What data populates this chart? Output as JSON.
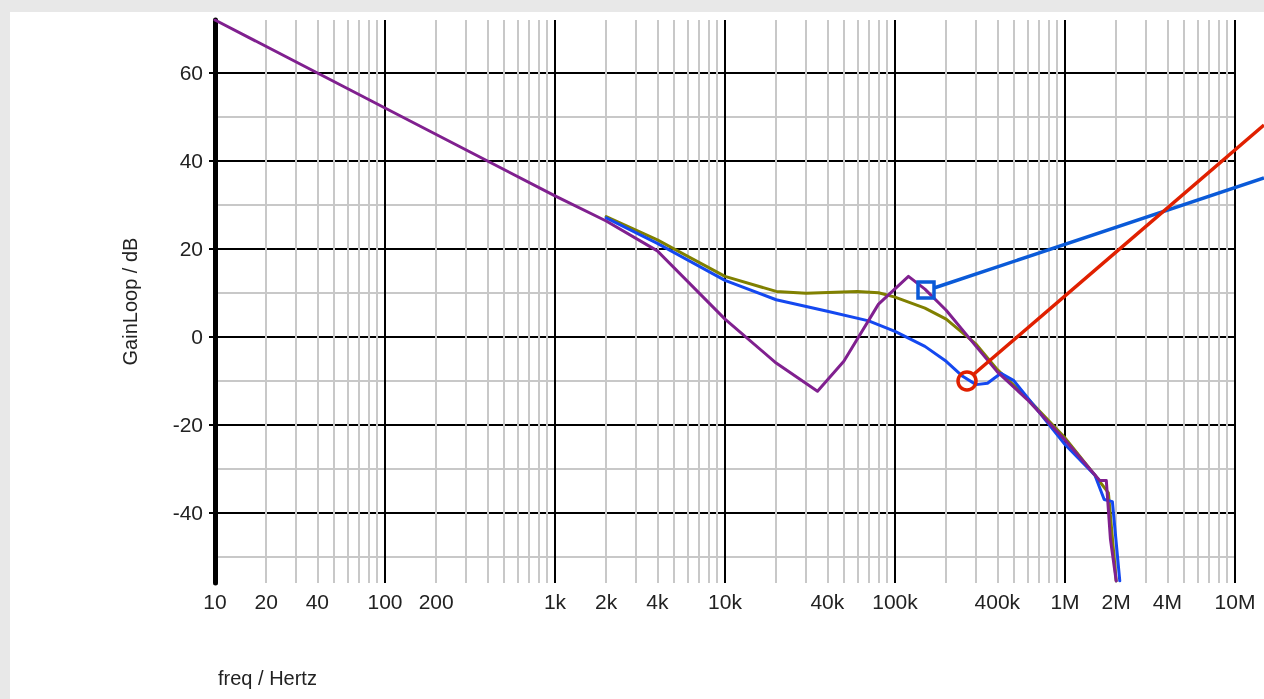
{
  "chart_data": {
    "type": "line",
    "xlabel": "freq / Hertz",
    "ylabel": "GainLoop / dB",
    "log": "x",
    "grid": true,
    "marker": "none",
    "line_style": "solid",
    "xlim": [
      10,
      10000000
    ],
    "ylim": [
      -56,
      72
    ],
    "xticks": [
      {
        "value": 10,
        "label": "10"
      },
      {
        "value": 20,
        "label": "20"
      },
      {
        "value": 30,
        "label": null
      },
      {
        "value": 40,
        "label": "40"
      },
      {
        "value": 50,
        "label": null
      },
      {
        "value": 60,
        "label": null
      },
      {
        "value": 70,
        "label": null
      },
      {
        "value": 80,
        "label": null
      },
      {
        "value": 90,
        "label": null
      },
      {
        "value": 100,
        "label": "100"
      },
      {
        "value": 200,
        "label": "200"
      },
      {
        "value": 300,
        "label": null
      },
      {
        "value": 400,
        "label": null
      },
      {
        "value": 500,
        "label": null
      },
      {
        "value": 600,
        "label": null
      },
      {
        "value": 700,
        "label": null
      },
      {
        "value": 800,
        "label": null
      },
      {
        "value": 900,
        "label": null
      },
      {
        "value": 1000,
        "label": "1k"
      },
      {
        "value": 2000,
        "label": "2k"
      },
      {
        "value": 3000,
        "label": null
      },
      {
        "value": 4000,
        "label": "4k"
      },
      {
        "value": 5000,
        "label": null
      },
      {
        "value": 6000,
        "label": null
      },
      {
        "value": 7000,
        "label": null
      },
      {
        "value": 8000,
        "label": null
      },
      {
        "value": 9000,
        "label": null
      },
      {
        "value": 10000,
        "label": "10k"
      },
      {
        "value": 20000,
        "label": null
      },
      {
        "value": 30000,
        "label": null
      },
      {
        "value": 40000,
        "label": "40k"
      },
      {
        "value": 50000,
        "label": null
      },
      {
        "value": 60000,
        "label": null
      },
      {
        "value": 70000,
        "label": null
      },
      {
        "value": 80000,
        "label": null
      },
      {
        "value": 90000,
        "label": null
      },
      {
        "value": 100000,
        "label": "100k"
      },
      {
        "value": 200000,
        "label": null
      },
      {
        "value": 300000,
        "label": null
      },
      {
        "value": 400000,
        "label": "400k"
      },
      {
        "value": 500000,
        "label": null
      },
      {
        "value": 600000,
        "label": null
      },
      {
        "value": 700000,
        "label": null
      },
      {
        "value": 800000,
        "label": null
      },
      {
        "value": 900000,
        "label": null
      },
      {
        "value": 1000000,
        "label": "1M"
      },
      {
        "value": 2000000,
        "label": "2M"
      },
      {
        "value": 3000000,
        "label": null
      },
      {
        "value": 4000000,
        "label": "4M"
      },
      {
        "value": 5000000,
        "label": null
      },
      {
        "value": 6000000,
        "label": null
      },
      {
        "value": 7000000,
        "label": null
      },
      {
        "value": 8000000,
        "label": null
      },
      {
        "value": 9000000,
        "label": null
      },
      {
        "value": 10000000,
        "label": "10M"
      }
    ],
    "yticks": [
      {
        "value": -50,
        "label": null
      },
      -40,
      {
        "value": -30,
        "label": null
      },
      -20,
      {
        "value": -10,
        "label": null
      },
      0,
      {
        "value": 10,
        "label": null
      },
      20,
      {
        "value": 30,
        "label": null
      },
      40,
      {
        "value": 50,
        "label": null
      },
      60
    ],
    "series": [
      {
        "color": "#808000",
        "x": [
          2000,
          4000,
          10000,
          20000,
          30000,
          60000,
          80000,
          100000,
          150000,
          200000,
          300000,
          400000,
          600000,
          1000000,
          1500000,
          1800000,
          2000000
        ],
        "values": [
          27.3,
          22,
          13.7,
          10.3,
          9.9,
          10.3,
          10,
          9,
          6.5,
          4,
          -1.7,
          -7.5,
          -14,
          -23,
          -31.5,
          -35.5,
          -55.5
        ]
      },
      {
        "color": "#1448f0",
        "x": [
          2000,
          4000,
          10000,
          20000,
          40000,
          70000,
          100000,
          150000,
          200000,
          250000,
          300000,
          350000,
          420000,
          500000,
          700000,
          1000000,
          1500000,
          1700000,
          1900000,
          2100000
        ],
        "values": [
          27,
          21.2,
          12.8,
          8.4,
          5.8,
          3.6,
          1.2,
          -2.2,
          -5.6,
          -9,
          -10.9,
          -10.6,
          -8.3,
          -10,
          -17,
          -24.5,
          -31.5,
          -37,
          -37.5,
          -55.5
        ]
      },
      {
        "color": "#80208f",
        "x": [
          10,
          100,
          1000,
          2000,
          4000,
          10000,
          20000,
          35000,
          50000,
          80000,
          120000,
          150000,
          200000,
          300000,
          400000,
          600000,
          1000000,
          1600000,
          1750000,
          1850000,
          2000000
        ],
        "values": [
          72,
          52,
          32,
          26.3,
          19.5,
          4,
          -6,
          -12.4,
          -5.6,
          7.4,
          13.7,
          10.8,
          6,
          -2.2,
          -8,
          -14.3,
          -23.5,
          -32.7,
          -32.7,
          -46,
          -55.5
        ]
      }
    ]
  }
}
